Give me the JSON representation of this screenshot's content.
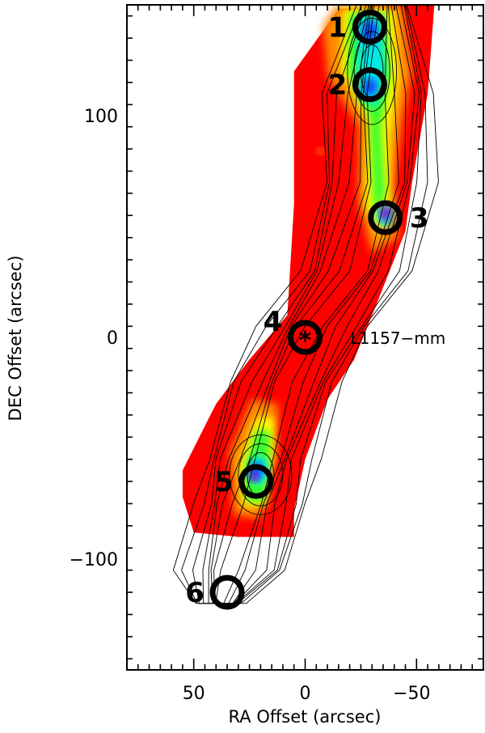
{
  "chart_data": {
    "type": "scatter",
    "title": "",
    "xlabel": "RA Offset (arcsec)",
    "ylabel": "DEC Offset (arcsec)",
    "xlim": [
      80,
      -80
    ],
    "ylim": [
      -150,
      150
    ],
    "x_ticks": [
      50,
      0,
      -50
    ],
    "y_ticks": [
      100,
      0,
      -100
    ],
    "x_tick_labels": [
      "50",
      "0",
      "−50"
    ],
    "y_tick_labels": [
      "100",
      "0",
      "−100"
    ],
    "grid": false,
    "x_axis_reversed": true,
    "source": {
      "label": "L1157−mm",
      "marker": "*",
      "x": 0,
      "y": 0
    },
    "positions": [
      {
        "label": "1",
        "x": -29,
        "y": 140
      },
      {
        "label": "2",
        "x": -29,
        "y": 114
      },
      {
        "label": "3",
        "x": -36,
        "y": 54
      },
      {
        "label": "4",
        "x": 0,
        "y": 0
      },
      {
        "label": "5",
        "x": 22,
        "y": -65
      },
      {
        "label": "6",
        "x": 35,
        "y": -115
      }
    ],
    "colors": {
      "map_background": "#ff0000",
      "orange": "#ff8800",
      "yellow": "#ffff00",
      "green": "#33ff33",
      "cyan": "#00e8e8",
      "blue": "#1040ff",
      "purple": "#9000d0",
      "contour": "#000000",
      "marker": "#000000"
    }
  }
}
